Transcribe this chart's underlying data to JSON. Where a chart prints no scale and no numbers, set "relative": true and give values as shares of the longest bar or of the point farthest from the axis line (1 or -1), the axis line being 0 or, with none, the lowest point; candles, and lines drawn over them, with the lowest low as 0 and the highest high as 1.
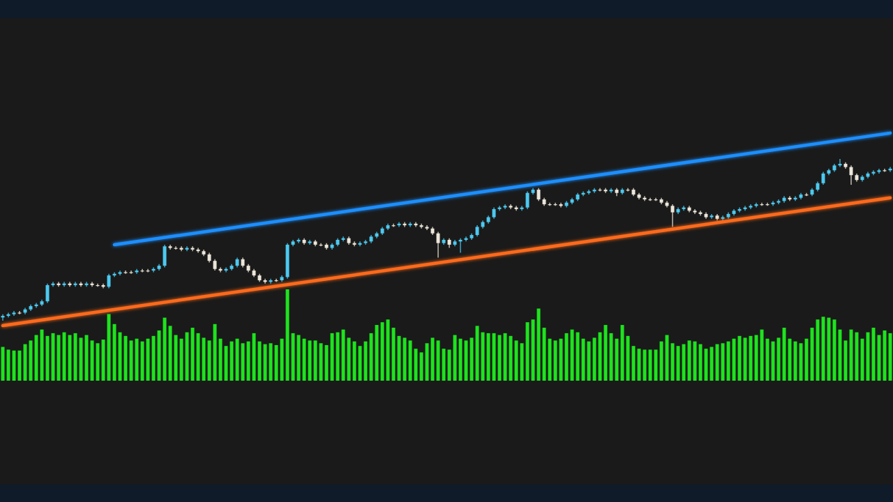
{
  "chart_data": [
    {
      "type": "candlestick",
      "relative": true,
      "categories": [
        null,
        null,
        null,
        null,
        null,
        null,
        null,
        null,
        null,
        null,
        null,
        null,
        null,
        null,
        null,
        null,
        null,
        null,
        null,
        null,
        null,
        null,
        null,
        null,
        null,
        null,
        null,
        null,
        null,
        null,
        null,
        null,
        null,
        null,
        null,
        null,
        null,
        null,
        null,
        null,
        null,
        null,
        null,
        null,
        null,
        null,
        null,
        null,
        null,
        null,
        null,
        null,
        null,
        null,
        null,
        null,
        null,
        null,
        null,
        null,
        null,
        null,
        null,
        null,
        null,
        null,
        null,
        null,
        null,
        null,
        null,
        null,
        null,
        null,
        null,
        null,
        null,
        null,
        null,
        null,
        null,
        null,
        null,
        null,
        null,
        null,
        null,
        null,
        null,
        null,
        null,
        null,
        null,
        null,
        null,
        null,
        null,
        null,
        null,
        null,
        null,
        null,
        null,
        null,
        null,
        null,
        null,
        null,
        null,
        null,
        null,
        null,
        null,
        null,
        null,
        null,
        null,
        null,
        null,
        null,
        null,
        null,
        null,
        null,
        null,
        null,
        null,
        null,
        null,
        null,
        null,
        null,
        null,
        null,
        null,
        null,
        null,
        null,
        null,
        null,
        null,
        null,
        null,
        null,
        null,
        null,
        null,
        null,
        null,
        null,
        null,
        null,
        null,
        null,
        null,
        null,
        null,
        null,
        null,
        null
      ],
      "ohlc": [
        [
          0.02,
          0.04,
          0,
          0.03
        ],
        [
          0.03,
          0.05,
          0.02,
          0.04
        ],
        [
          0.04,
          0.06,
          0.03,
          0.05
        ],
        [
          0.05,
          0.06,
          0.04,
          0.05
        ],
        [
          0.05,
          0.08,
          0.04,
          0.07
        ],
        [
          0.07,
          0.1,
          0.06,
          0.09
        ],
        [
          0.09,
          0.11,
          0.08,
          0.1
        ],
        [
          0.1,
          0.13,
          0.09,
          0.12
        ],
        [
          0.12,
          0.23,
          0.11,
          0.22
        ],
        [
          0.22,
          0.24,
          0.21,
          0.23
        ],
        [
          0.23,
          0.24,
          0.21,
          0.22
        ],
        [
          0.22,
          0.24,
          0.21,
          0.23
        ],
        [
          0.23,
          0.24,
          0.21,
          0.22
        ],
        [
          0.22,
          0.24,
          0.21,
          0.23
        ],
        [
          0.23,
          0.24,
          0.21,
          0.22
        ],
        [
          0.22,
          0.24,
          0.21,
          0.23
        ],
        [
          0.23,
          0.24,
          0.21,
          0.22
        ],
        [
          0.22,
          0.23,
          0.21,
          0.22
        ],
        [
          0.22,
          0.23,
          0.2,
          0.21
        ],
        [
          0.21,
          0.29,
          0.2,
          0.28
        ],
        [
          0.28,
          0.3,
          0.27,
          0.29
        ],
        [
          0.29,
          0.31,
          0.28,
          0.3
        ],
        [
          0.3,
          0.31,
          0.29,
          0.3
        ],
        [
          0.3,
          0.31,
          0.29,
          0.3
        ],
        [
          0.3,
          0.32,
          0.29,
          0.31
        ],
        [
          0.31,
          0.32,
          0.3,
          0.31
        ],
        [
          0.31,
          0.32,
          0.3,
          0.31
        ],
        [
          0.31,
          0.33,
          0.3,
          0.32
        ],
        [
          0.32,
          0.35,
          0.31,
          0.34
        ],
        [
          0.34,
          0.47,
          0.33,
          0.46
        ],
        [
          0.46,
          0.47,
          0.44,
          0.45
        ],
        [
          0.45,
          0.46,
          0.44,
          0.45
        ],
        [
          0.45,
          0.46,
          0.43,
          0.44
        ],
        [
          0.44,
          0.46,
          0.43,
          0.45
        ],
        [
          0.45,
          0.46,
          0.43,
          0.44
        ],
        [
          0.44,
          0.45,
          0.42,
          0.43
        ],
        [
          0.43,
          0.44,
          0.4,
          0.41
        ],
        [
          0.41,
          0.42,
          0.36,
          0.37
        ],
        [
          0.37,
          0.38,
          0.31,
          0.32
        ],
        [
          0.32,
          0.33,
          0.3,
          0.31
        ],
        [
          0.31,
          0.33,
          0.3,
          0.32
        ],
        [
          0.32,
          0.35,
          0.31,
          0.34
        ],
        [
          0.34,
          0.39,
          0.33,
          0.38
        ],
        [
          0.38,
          0.39,
          0.33,
          0.34
        ],
        [
          0.34,
          0.35,
          0.3,
          0.31
        ],
        [
          0.31,
          0.32,
          0.27,
          0.28
        ],
        [
          0.28,
          0.29,
          0.24,
          0.25
        ],
        [
          0.25,
          0.26,
          0.23,
          0.24
        ],
        [
          0.24,
          0.26,
          0.23,
          0.25
        ],
        [
          0.25,
          0.26,
          0.24,
          0.25
        ],
        [
          0.25,
          0.28,
          0.24,
          0.27
        ],
        [
          0.27,
          0.48,
          0.26,
          0.47
        ],
        [
          0.47,
          0.5,
          0.46,
          0.49
        ],
        [
          0.49,
          0.51,
          0.48,
          0.5
        ],
        [
          0.5,
          0.51,
          0.47,
          0.48
        ],
        [
          0.48,
          0.5,
          0.47,
          0.49
        ],
        [
          0.49,
          0.5,
          0.46,
          0.47
        ],
        [
          0.47,
          0.48,
          0.46,
          0.47
        ],
        [
          0.47,
          0.48,
          0.44,
          0.45
        ],
        [
          0.45,
          0.48,
          0.44,
          0.47
        ],
        [
          0.47,
          0.51,
          0.46,
          0.5
        ],
        [
          0.5,
          0.52,
          0.49,
          0.51
        ],
        [
          0.51,
          0.52,
          0.47,
          0.48
        ],
        [
          0.48,
          0.49,
          0.46,
          0.47
        ],
        [
          0.47,
          0.49,
          0.46,
          0.48
        ],
        [
          0.48,
          0.5,
          0.47,
          0.49
        ],
        [
          0.49,
          0.53,
          0.48,
          0.52
        ],
        [
          0.52,
          0.55,
          0.51,
          0.54
        ],
        [
          0.54,
          0.58,
          0.53,
          0.57
        ],
        [
          0.57,
          0.6,
          0.56,
          0.59
        ],
        [
          0.59,
          0.6,
          0.58,
          0.59
        ],
        [
          0.59,
          0.61,
          0.58,
          0.6
        ],
        [
          0.6,
          0.61,
          0.58,
          0.59
        ],
        [
          0.59,
          0.61,
          0.58,
          0.6
        ],
        [
          0.6,
          0.61,
          0.58,
          0.59
        ],
        [
          0.59,
          0.6,
          0.57,
          0.58
        ],
        [
          0.58,
          0.59,
          0.56,
          0.57
        ],
        [
          0.57,
          0.58,
          0.53,
          0.54
        ],
        [
          0.54,
          0.55,
          0.39,
          0.48
        ],
        [
          0.48,
          0.51,
          0.47,
          0.5
        ],
        [
          0.5,
          0.51,
          0.45,
          0.47
        ],
        [
          0.47,
          0.5,
          0.46,
          0.49
        ],
        [
          0.49,
          0.51,
          0.42,
          0.5
        ],
        [
          0.5,
          0.52,
          0.49,
          0.51
        ],
        [
          0.51,
          0.54,
          0.5,
          0.53
        ],
        [
          0.53,
          0.59,
          0.52,
          0.58
        ],
        [
          0.58,
          0.62,
          0.57,
          0.61
        ],
        [
          0.61,
          0.65,
          0.6,
          0.64
        ],
        [
          0.64,
          0.7,
          0.63,
          0.69
        ],
        [
          0.69,
          0.71,
          0.68,
          0.7
        ],
        [
          0.7,
          0.72,
          0.69,
          0.71
        ],
        [
          0.71,
          0.72,
          0.69,
          0.7
        ],
        [
          0.7,
          0.71,
          0.68,
          0.69
        ],
        [
          0.69,
          0.71,
          0.68,
          0.7
        ],
        [
          0.7,
          0.8,
          0.69,
          0.79
        ],
        [
          0.79,
          0.82,
          0.78,
          0.81
        ],
        [
          0.81,
          0.82,
          0.74,
          0.75
        ],
        [
          0.75,
          0.76,
          0.71,
          0.72
        ],
        [
          0.72,
          0.73,
          0.71,
          0.72
        ],
        [
          0.72,
          0.73,
          0.71,
          0.72
        ],
        [
          0.72,
          0.73,
          0.7,
          0.71
        ],
        [
          0.71,
          0.74,
          0.7,
          0.73
        ],
        [
          0.73,
          0.76,
          0.72,
          0.75
        ],
        [
          0.75,
          0.79,
          0.74,
          0.78
        ],
        [
          0.78,
          0.8,
          0.77,
          0.79
        ],
        [
          0.79,
          0.81,
          0.78,
          0.8
        ],
        [
          0.8,
          0.82,
          0.79,
          0.81
        ],
        [
          0.81,
          0.82,
          0.8,
          0.81
        ],
        [
          0.81,
          0.82,
          0.79,
          0.8
        ],
        [
          0.8,
          0.82,
          0.79,
          0.81
        ],
        [
          0.81,
          0.82,
          0.77,
          0.79
        ],
        [
          0.79,
          0.82,
          0.78,
          0.81
        ],
        [
          0.81,
          0.82,
          0.8,
          0.81
        ],
        [
          0.81,
          0.82,
          0.77,
          0.78
        ],
        [
          0.78,
          0.79,
          0.75,
          0.76
        ],
        [
          0.76,
          0.77,
          0.74,
          0.75
        ],
        [
          0.75,
          0.76,
          0.74,
          0.75
        ],
        [
          0.75,
          0.76,
          0.74,
          0.75
        ],
        [
          0.75,
          0.76,
          0.72,
          0.73
        ],
        [
          0.73,
          0.74,
          0.7,
          0.71
        ],
        [
          0.71,
          0.72,
          0.58,
          0.67
        ],
        [
          0.67,
          0.7,
          0.66,
          0.69
        ],
        [
          0.69,
          0.71,
          0.68,
          0.7
        ],
        [
          0.7,
          0.71,
          0.67,
          0.68
        ],
        [
          0.68,
          0.69,
          0.66,
          0.67
        ],
        [
          0.67,
          0.68,
          0.65,
          0.66
        ],
        [
          0.66,
          0.67,
          0.63,
          0.64
        ],
        [
          0.64,
          0.66,
          0.63,
          0.65
        ],
        [
          0.65,
          0.66,
          0.62,
          0.63
        ],
        [
          0.63,
          0.65,
          0.62,
          0.64
        ],
        [
          0.64,
          0.67,
          0.63,
          0.66
        ],
        [
          0.66,
          0.69,
          0.65,
          0.68
        ],
        [
          0.68,
          0.7,
          0.67,
          0.69
        ],
        [
          0.69,
          0.71,
          0.68,
          0.7
        ],
        [
          0.7,
          0.72,
          0.69,
          0.71
        ],
        [
          0.71,
          0.73,
          0.7,
          0.72
        ],
        [
          0.72,
          0.73,
          0.71,
          0.72
        ],
        [
          0.72,
          0.73,
          0.71,
          0.72
        ],
        [
          0.72,
          0.74,
          0.71,
          0.73
        ],
        [
          0.73,
          0.75,
          0.72,
          0.74
        ],
        [
          0.74,
          0.77,
          0.73,
          0.76
        ],
        [
          0.76,
          0.77,
          0.74,
          0.75
        ],
        [
          0.75,
          0.77,
          0.74,
          0.76
        ],
        [
          0.76,
          0.79,
          0.75,
          0.78
        ],
        [
          0.78,
          0.79,
          0.77,
          0.78
        ],
        [
          0.78,
          0.82,
          0.77,
          0.81
        ],
        [
          0.81,
          0.86,
          0.8,
          0.85
        ],
        [
          0.85,
          0.92,
          0.84,
          0.91
        ],
        [
          0.91,
          0.94,
          0.9,
          0.93
        ],
        [
          0.93,
          0.97,
          0.92,
          0.96
        ],
        [
          0.96,
          1,
          0.95,
          0.97
        ],
        [
          0.97,
          0.98,
          0.94,
          0.95
        ],
        [
          0.95,
          0.96,
          0.84,
          0.9
        ],
        [
          0.9,
          0.91,
          0.86,
          0.87
        ],
        [
          0.87,
          0.9,
          0.86,
          0.89
        ],
        [
          0.89,
          0.92,
          0.88,
          0.91
        ],
        [
          0.91,
          0.93,
          0.9,
          0.92
        ],
        [
          0.92,
          0.94,
          0.91,
          0.93
        ],
        [
          0.93,
          0.94,
          0.92,
          0.93
        ],
        [
          0.93,
          0.95,
          0.92,
          0.94
        ]
      ],
      "colors": [
        "#4cc9f0",
        "#4cc9f0",
        "#4cc9f0",
        "#ece6da",
        "#4cc9f0",
        "#4cc9f0",
        "#4cc9f0",
        "#4cc9f0",
        "#4cc9f0",
        "#4cc9f0",
        "#ece6da",
        "#4cc9f0",
        "#ece6da",
        "#4cc9f0",
        "#ece6da",
        "#4cc9f0",
        "#ece6da",
        "#ece6da",
        "#ece6da",
        "#4cc9f0",
        "#4cc9f0",
        "#4cc9f0",
        "#ece6da",
        "#ece6da",
        "#4cc9f0",
        "#ece6da",
        "#ece6da",
        "#4cc9f0",
        "#4cc9f0",
        "#4cc9f0",
        "#ece6da",
        "#ece6da",
        "#ece6da",
        "#4cc9f0",
        "#ece6da",
        "#ece6da",
        "#ece6da",
        "#ece6da",
        "#ece6da",
        "#ece6da",
        "#4cc9f0",
        "#4cc9f0",
        "#4cc9f0",
        "#ece6da",
        "#ece6da",
        "#ece6da",
        "#ece6da",
        "#ece6da",
        "#4cc9f0",
        "#ece6da",
        "#4cc9f0",
        "#4cc9f0",
        "#4cc9f0",
        "#4cc9f0",
        "#ece6da",
        "#4cc9f0",
        "#ece6da",
        "#ece6da",
        "#ece6da",
        "#4cc9f0",
        "#4cc9f0",
        "#4cc9f0",
        "#ece6da",
        "#ece6da",
        "#4cc9f0",
        "#4cc9f0",
        "#4cc9f0",
        "#4cc9f0",
        "#4cc9f0",
        "#4cc9f0",
        "#ece6da",
        "#4cc9f0",
        "#ece6da",
        "#4cc9f0",
        "#ece6da",
        "#ece6da",
        "#ece6da",
        "#ece6da",
        "#ece6da",
        "#4cc9f0",
        "#ece6da",
        "#4cc9f0",
        "#4cc9f0",
        "#4cc9f0",
        "#4cc9f0",
        "#4cc9f0",
        "#4cc9f0",
        "#4cc9f0",
        "#4cc9f0",
        "#4cc9f0",
        "#4cc9f0",
        "#ece6da",
        "#ece6da",
        "#4cc9f0",
        "#4cc9f0",
        "#4cc9f0",
        "#ece6da",
        "#ece6da",
        "#ece6da",
        "#ece6da",
        "#ece6da",
        "#4cc9f0",
        "#4cc9f0",
        "#4cc9f0",
        "#4cc9f0",
        "#4cc9f0",
        "#4cc9f0",
        "#ece6da",
        "#ece6da",
        "#4cc9f0",
        "#ece6da",
        "#4cc9f0",
        "#ece6da",
        "#ece6da",
        "#ece6da",
        "#ece6da",
        "#ece6da",
        "#ece6da",
        "#ece6da",
        "#ece6da",
        "#ece6da",
        "#4cc9f0",
        "#4cc9f0",
        "#ece6da",
        "#ece6da",
        "#ece6da",
        "#ece6da",
        "#4cc9f0",
        "#ece6da",
        "#4cc9f0",
        "#4cc9f0",
        "#4cc9f0",
        "#4cc9f0",
        "#4cc9f0",
        "#4cc9f0",
        "#4cc9f0",
        "#ece6da",
        "#ece6da",
        "#4cc9f0",
        "#4cc9f0",
        "#4cc9f0",
        "#ece6da",
        "#4cc9f0",
        "#4cc9f0",
        "#ece6da",
        "#4cc9f0",
        "#4cc9f0",
        "#4cc9f0",
        "#4cc9f0",
        "#4cc9f0",
        "#4cc9f0",
        "#ece6da",
        "#ece6da",
        "#ece6da",
        "#4cc9f0",
        "#4cc9f0",
        "#4cc9f0",
        "#4cc9f0",
        "#ece6da",
        "#4cc9f0"
      ],
      "series": [
        {
          "type": "line",
          "color": "#1e8fff",
          "values": [
            null,
            null,
            null,
            null,
            null,
            null,
            null,
            null,
            null,
            null,
            null,
            null,
            null,
            null,
            null,
            null,
            null,
            null,
            null,
            null,
            0.47,
            null,
            null,
            null,
            null,
            null,
            null,
            null,
            null,
            null,
            null,
            null,
            null,
            null,
            null,
            null,
            null,
            null,
            null,
            null,
            null,
            null,
            null,
            null,
            null,
            null,
            null,
            null,
            null,
            null,
            null,
            null,
            null,
            null,
            null,
            null,
            null,
            null,
            null,
            null,
            null,
            null,
            null,
            null,
            null,
            null,
            null,
            null,
            null,
            null,
            null,
            null,
            null,
            null,
            null,
            null,
            null,
            null,
            null,
            null,
            null,
            null,
            null,
            null,
            null,
            null,
            null,
            null,
            null,
            null,
            null,
            null,
            null,
            null,
            null,
            null,
            null,
            null,
            null,
            null,
            null,
            null,
            null,
            null,
            null,
            null,
            null,
            null,
            null,
            null,
            null,
            null,
            null,
            null,
            null,
            null,
            null,
            null,
            null,
            null,
            null,
            null,
            null,
            null,
            null,
            null,
            null,
            null,
            null,
            null,
            null,
            null,
            null,
            null,
            null,
            null,
            null,
            null,
            null,
            null,
            null,
            null,
            null,
            null,
            null,
            null,
            null,
            null,
            null,
            null,
            null,
            null,
            null,
            null,
            null,
            null,
            null,
            null,
            null,
            1.16
          ]
        },
        {
          "type": "line",
          "color": "#ff6a1a",
          "values": [
            -0.03,
            null,
            null,
            null,
            null,
            null,
            null,
            null,
            null,
            null,
            null,
            null,
            null,
            null,
            null,
            null,
            null,
            null,
            null,
            null,
            null,
            null,
            null,
            null,
            null,
            null,
            null,
            null,
            null,
            null,
            null,
            null,
            null,
            null,
            null,
            null,
            null,
            null,
            null,
            null,
            null,
            null,
            null,
            null,
            null,
            null,
            null,
            null,
            null,
            null,
            null,
            null,
            null,
            null,
            null,
            null,
            null,
            null,
            null,
            null,
            null,
            null,
            null,
            null,
            null,
            null,
            null,
            null,
            null,
            null,
            null,
            null,
            null,
            null,
            null,
            null,
            null,
            null,
            null,
            null,
            null,
            null,
            null,
            null,
            null,
            null,
            null,
            null,
            null,
            null,
            null,
            null,
            null,
            null,
            null,
            null,
            null,
            null,
            null,
            null,
            null,
            null,
            null,
            null,
            null,
            null,
            null,
            null,
            null,
            null,
            null,
            null,
            null,
            null,
            null,
            null,
            null,
            null,
            null,
            null,
            null,
            null,
            null,
            null,
            null,
            null,
            null,
            null,
            null,
            null,
            null,
            null,
            null,
            null,
            null,
            null,
            null,
            null,
            null,
            null,
            null,
            null,
            null,
            null,
            null,
            null,
            null,
            null,
            null,
            null,
            null,
            null,
            null,
            null,
            null,
            null,
            null,
            null,
            null,
            0.76
          ]
        }
      ]
    },
    {
      "type": "bar",
      "relative": true,
      "color": "#1ee31e",
      "categories": [
        null,
        null,
        null,
        null,
        null,
        null,
        null,
        null,
        null,
        null,
        null,
        null,
        null,
        null,
        null,
        null,
        null,
        null,
        null,
        null,
        null,
        null,
        null,
        null,
        null,
        null,
        null,
        null,
        null,
        null,
        null,
        null,
        null,
        null,
        null,
        null,
        null,
        null,
        null,
        null,
        null,
        null,
        null,
        null,
        null,
        null,
        null,
        null,
        null,
        null,
        null,
        null,
        null,
        null,
        null,
        null,
        null,
        null,
        null,
        null,
        null,
        null,
        null,
        null,
        null,
        null,
        null,
        null,
        null,
        null,
        null,
        null,
        null,
        null,
        null,
        null,
        null,
        null,
        null,
        null,
        null,
        null,
        null,
        null,
        null,
        null,
        null,
        null,
        null,
        null,
        null,
        null,
        null,
        null,
        null,
        null,
        null,
        null,
        null,
        null,
        null,
        null,
        null,
        null,
        null,
        null,
        null,
        null,
        null,
        null,
        null,
        null,
        null,
        null,
        null,
        null,
        null,
        null,
        null,
        null,
        null,
        null,
        null,
        null,
        null,
        null,
        null,
        null,
        null,
        null,
        null,
        null,
        null,
        null,
        null,
        null,
        null,
        null,
        null,
        null,
        null,
        null,
        null,
        null,
        null,
        null,
        null,
        null,
        null,
        null,
        null,
        null,
        null,
        null,
        null,
        null,
        null,
        null,
        null,
        null
      ],
      "values": [
        0.37,
        0.34,
        0.33,
        0.33,
        0.4,
        0.44,
        0.5,
        0.56,
        0.49,
        0.52,
        0.5,
        0.53,
        0.5,
        0.52,
        0.47,
        0.5,
        0.44,
        0.41,
        0.45,
        0.73,
        0.62,
        0.53,
        0.49,
        0.44,
        0.46,
        0.43,
        0.46,
        0.49,
        0.55,
        0.69,
        0.6,
        0.5,
        0.46,
        0.53,
        0.58,
        0.52,
        0.47,
        0.44,
        0.62,
        0.46,
        0.38,
        0.43,
        0.46,
        0.41,
        0.43,
        0.52,
        0.43,
        0.4,
        0.41,
        0.39,
        0.46,
        1,
        0.52,
        0.5,
        0.46,
        0.44,
        0.44,
        0.41,
        0.39,
        0.52,
        0.53,
        0.56,
        0.47,
        0.43,
        0.38,
        0.43,
        0.52,
        0.61,
        0.64,
        0.67,
        0.58,
        0.49,
        0.47,
        0.44,
        0.35,
        0.31,
        0.41,
        0.47,
        0.44,
        0.35,
        0.34,
        0.5,
        0.46,
        0.44,
        0.47,
        0.6,
        0.53,
        0.52,
        0.52,
        0.5,
        0.52,
        0.49,
        0.44,
        0.41,
        0.64,
        0.67,
        0.79,
        0.58,
        0.46,
        0.44,
        0.46,
        0.52,
        0.56,
        0.53,
        0.46,
        0.43,
        0.47,
        0.53,
        0.61,
        0.52,
        0.46,
        0.61,
        0.49,
        0.38,
        0.35,
        0.34,
        0.34,
        0.34,
        0.43,
        0.5,
        0.41,
        0.38,
        0.4,
        0.44,
        0.43,
        0.4,
        0.35,
        0.37,
        0.4,
        0.41,
        0.43,
        0.46,
        0.49,
        0.47,
        0.49,
        0.5,
        0.56,
        0.46,
        0.43,
        0.47,
        0.58,
        0.46,
        0.43,
        0.41,
        0.46,
        0.58,
        0.67,
        0.7,
        0.69,
        0.67,
        0.56,
        0.44,
        0.56,
        0.53,
        0.46,
        0.53,
        0.58,
        0.5,
        0.55,
        0.52
      ]
    }
  ]
}
